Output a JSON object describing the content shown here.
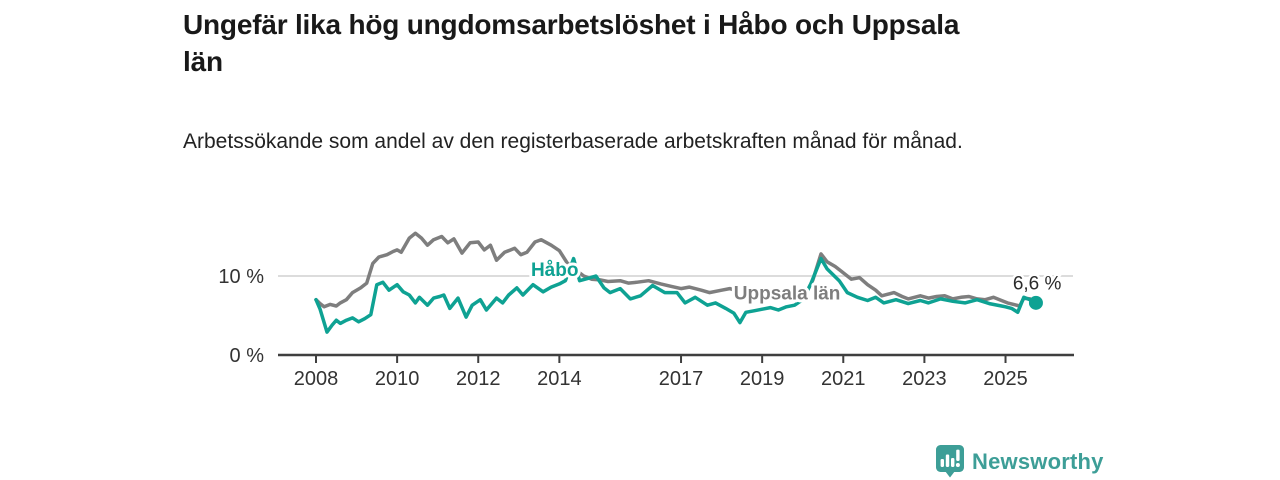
{
  "header": {
    "title": "Ungefär lika hög ungdomsarbetslöshet i Håbo och Uppsala län",
    "subtitle": "Arbetssökande som andel av den registerbaserade arbetskraften månad för månad."
  },
  "branding": {
    "name": "Newsworthy",
    "icon": "newsworthy-chart-bubble-icon",
    "color": "#3d9e97"
  },
  "chart_data": {
    "type": "line",
    "title": "Ungefär lika hög ungdomsarbetslöshet i Håbo och Uppsala län",
    "subtitle": "Arbetssökande som andel av den registerbaserade arbetskraften månad för månad.",
    "unit": "%",
    "xlabel": "",
    "ylabel": "",
    "xlim": [
      2007.85,
      2025.95
    ],
    "ylim": [
      0,
      16.5
    ],
    "grid": "single horizontal gridline at 10 %",
    "legend_position": "inline series labels",
    "x_ticks": [
      {
        "label": "2008",
        "year": 2008
      },
      {
        "label": "2010",
        "year": 2010
      },
      {
        "label": "2012",
        "year": 2012
      },
      {
        "label": "2014",
        "year": 2014
      },
      {
        "label": "2017",
        "year": 2017
      },
      {
        "label": "2019",
        "year": 2019
      },
      {
        "label": "2021",
        "year": 2021
      },
      {
        "label": "2023",
        "year": 2023
      },
      {
        "label": "2025",
        "year": 2025
      }
    ],
    "y_ticks": [
      {
        "label": "0 %",
        "value": 0
      },
      {
        "label": "10 %",
        "value": 10
      }
    ],
    "end_annotation": {
      "text": "6,6 %",
      "x": 2025.18,
      "y": 8.3,
      "color": "#2b2b2b"
    },
    "series": [
      {
        "name": "Uppsala län",
        "color": "#7e7e7e",
        "label": {
          "text": "Uppsala län",
          "x": 2018.3,
          "y": 7.0
        },
        "points": [
          [
            2008.0,
            7.0
          ],
          [
            2008.1,
            6.5
          ],
          [
            2008.2,
            6.1
          ],
          [
            2008.35,
            6.4
          ],
          [
            2008.5,
            6.2
          ],
          [
            2008.6,
            6.6
          ],
          [
            2008.75,
            7.0
          ],
          [
            2008.9,
            7.9
          ],
          [
            2009.1,
            8.5
          ],
          [
            2009.25,
            9.1
          ],
          [
            2009.4,
            11.6
          ],
          [
            2009.55,
            12.4
          ],
          [
            2009.75,
            12.7
          ],
          [
            2009.9,
            13.1
          ],
          [
            2010.0,
            13.3
          ],
          [
            2010.1,
            13.0
          ],
          [
            2010.3,
            14.8
          ],
          [
            2010.45,
            15.4
          ],
          [
            2010.6,
            14.8
          ],
          [
            2010.75,
            13.9
          ],
          [
            2010.9,
            14.6
          ],
          [
            2011.1,
            15.0
          ],
          [
            2011.25,
            14.2
          ],
          [
            2011.4,
            14.7
          ],
          [
            2011.6,
            12.9
          ],
          [
            2011.8,
            14.2
          ],
          [
            2012.0,
            14.3
          ],
          [
            2012.15,
            13.3
          ],
          [
            2012.3,
            13.9
          ],
          [
            2012.45,
            12.0
          ],
          [
            2012.65,
            13.0
          ],
          [
            2012.9,
            13.5
          ],
          [
            2013.05,
            12.7
          ],
          [
            2013.2,
            13.0
          ],
          [
            2013.4,
            14.3
          ],
          [
            2013.55,
            14.6
          ],
          [
            2013.8,
            13.9
          ],
          [
            2014.0,
            13.2
          ],
          [
            2014.2,
            11.6
          ],
          [
            2014.4,
            10.8
          ],
          [
            2014.6,
            10.0
          ],
          [
            2014.8,
            9.6
          ],
          [
            2015.0,
            9.5
          ],
          [
            2015.2,
            9.3
          ],
          [
            2015.5,
            9.4
          ],
          [
            2015.7,
            9.1
          ],
          [
            2015.9,
            9.2
          ],
          [
            2016.2,
            9.4
          ],
          [
            2016.5,
            9.0
          ],
          [
            2016.75,
            8.7
          ],
          [
            2017.0,
            8.4
          ],
          [
            2017.2,
            8.6
          ],
          [
            2017.5,
            8.2
          ],
          [
            2017.7,
            7.9
          ],
          [
            2018.0,
            8.2
          ],
          [
            2018.2,
            8.4
          ],
          [
            2018.45,
            8.0
          ],
          [
            2018.8,
            7.5
          ],
          [
            2019.0,
            7.4
          ],
          [
            2019.3,
            7.5
          ],
          [
            2019.6,
            7.2
          ],
          [
            2019.9,
            7.3
          ],
          [
            2020.1,
            8.0
          ],
          [
            2020.25,
            9.5
          ],
          [
            2020.45,
            12.8
          ],
          [
            2020.6,
            11.8
          ],
          [
            2020.8,
            11.2
          ],
          [
            2020.95,
            10.6
          ],
          [
            2021.2,
            9.6
          ],
          [
            2021.4,
            9.8
          ],
          [
            2021.6,
            8.9
          ],
          [
            2021.8,
            8.2
          ],
          [
            2021.95,
            7.5
          ],
          [
            2022.1,
            7.7
          ],
          [
            2022.25,
            7.9
          ],
          [
            2022.45,
            7.4
          ],
          [
            2022.6,
            7.1
          ],
          [
            2022.9,
            7.5
          ],
          [
            2023.1,
            7.2
          ],
          [
            2023.3,
            7.4
          ],
          [
            2023.5,
            7.5
          ],
          [
            2023.7,
            7.1
          ],
          [
            2023.9,
            7.3
          ],
          [
            2024.1,
            7.4
          ],
          [
            2024.3,
            7.1
          ],
          [
            2024.5,
            7.0
          ],
          [
            2024.7,
            7.3
          ],
          [
            2024.9,
            6.9
          ],
          [
            2025.05,
            6.6
          ],
          [
            2025.2,
            6.4
          ],
          [
            2025.35,
            6.2
          ],
          [
            2025.45,
            7.2
          ],
          [
            2025.6,
            7.1
          ]
        ]
      },
      {
        "name": "Håbo",
        "color": "#0ea293",
        "label": {
          "text": "Håbo",
          "x": 2013.3,
          "y": 10.0
        },
        "end_dot": {
          "x": 2025.75,
          "y": 6.6,
          "radius": 7
        },
        "points": [
          [
            2008.0,
            7.0
          ],
          [
            2008.1,
            5.8
          ],
          [
            2008.27,
            2.9
          ],
          [
            2008.4,
            3.8
          ],
          [
            2008.5,
            4.4
          ],
          [
            2008.6,
            4.0
          ],
          [
            2008.75,
            4.4
          ],
          [
            2008.9,
            4.7
          ],
          [
            2009.05,
            4.2
          ],
          [
            2009.2,
            4.6
          ],
          [
            2009.35,
            5.1
          ],
          [
            2009.5,
            8.9
          ],
          [
            2009.65,
            9.2
          ],
          [
            2009.8,
            8.2
          ],
          [
            2010.0,
            8.9
          ],
          [
            2010.15,
            8.0
          ],
          [
            2010.3,
            7.6
          ],
          [
            2010.45,
            6.6
          ],
          [
            2010.55,
            7.3
          ],
          [
            2010.75,
            6.3
          ],
          [
            2010.9,
            7.2
          ],
          [
            2011.05,
            7.4
          ],
          [
            2011.15,
            7.6
          ],
          [
            2011.3,
            5.9
          ],
          [
            2011.5,
            7.2
          ],
          [
            2011.7,
            4.8
          ],
          [
            2011.85,
            6.3
          ],
          [
            2012.05,
            7.0
          ],
          [
            2012.2,
            5.7
          ],
          [
            2012.45,
            7.2
          ],
          [
            2012.6,
            6.6
          ],
          [
            2012.75,
            7.6
          ],
          [
            2012.95,
            8.5
          ],
          [
            2013.1,
            7.6
          ],
          [
            2013.35,
            8.9
          ],
          [
            2013.6,
            8.0
          ],
          [
            2013.8,
            8.6
          ],
          [
            2014.0,
            9.0
          ],
          [
            2014.15,
            9.4
          ],
          [
            2014.35,
            12.2
          ],
          [
            2014.5,
            9.4
          ],
          [
            2014.7,
            9.7
          ],
          [
            2014.9,
            10.0
          ],
          [
            2015.1,
            8.5
          ],
          [
            2015.25,
            7.9
          ],
          [
            2015.5,
            8.4
          ],
          [
            2015.75,
            7.1
          ],
          [
            2016.0,
            7.5
          ],
          [
            2016.3,
            8.8
          ],
          [
            2016.6,
            7.9
          ],
          [
            2016.9,
            7.9
          ],
          [
            2017.1,
            6.6
          ],
          [
            2017.35,
            7.3
          ],
          [
            2017.65,
            6.3
          ],
          [
            2017.85,
            6.6
          ],
          [
            2018.1,
            5.9
          ],
          [
            2018.3,
            5.3
          ],
          [
            2018.45,
            4.1
          ],
          [
            2018.6,
            5.4
          ],
          [
            2018.8,
            5.6
          ],
          [
            2019.0,
            5.8
          ],
          [
            2019.2,
            6.0
          ],
          [
            2019.4,
            5.7
          ],
          [
            2019.6,
            6.1
          ],
          [
            2019.8,
            6.3
          ],
          [
            2020.0,
            7.0
          ],
          [
            2020.2,
            9.0
          ],
          [
            2020.45,
            12.2
          ],
          [
            2020.6,
            10.9
          ],
          [
            2020.9,
            9.4
          ],
          [
            2021.1,
            7.9
          ],
          [
            2021.35,
            7.3
          ],
          [
            2021.6,
            6.9
          ],
          [
            2021.8,
            7.3
          ],
          [
            2022.0,
            6.6
          ],
          [
            2022.3,
            7.0
          ],
          [
            2022.6,
            6.5
          ],
          [
            2022.9,
            6.9
          ],
          [
            2023.1,
            6.6
          ],
          [
            2023.4,
            7.1
          ],
          [
            2023.7,
            6.8
          ],
          [
            2024.0,
            6.6
          ],
          [
            2024.3,
            7.0
          ],
          [
            2024.6,
            6.5
          ],
          [
            2024.9,
            6.2
          ],
          [
            2025.0,
            6.1
          ],
          [
            2025.15,
            5.9
          ],
          [
            2025.3,
            5.4
          ],
          [
            2025.45,
            7.3
          ],
          [
            2025.6,
            7.0
          ],
          [
            2025.75,
            6.6
          ]
        ]
      }
    ]
  }
}
